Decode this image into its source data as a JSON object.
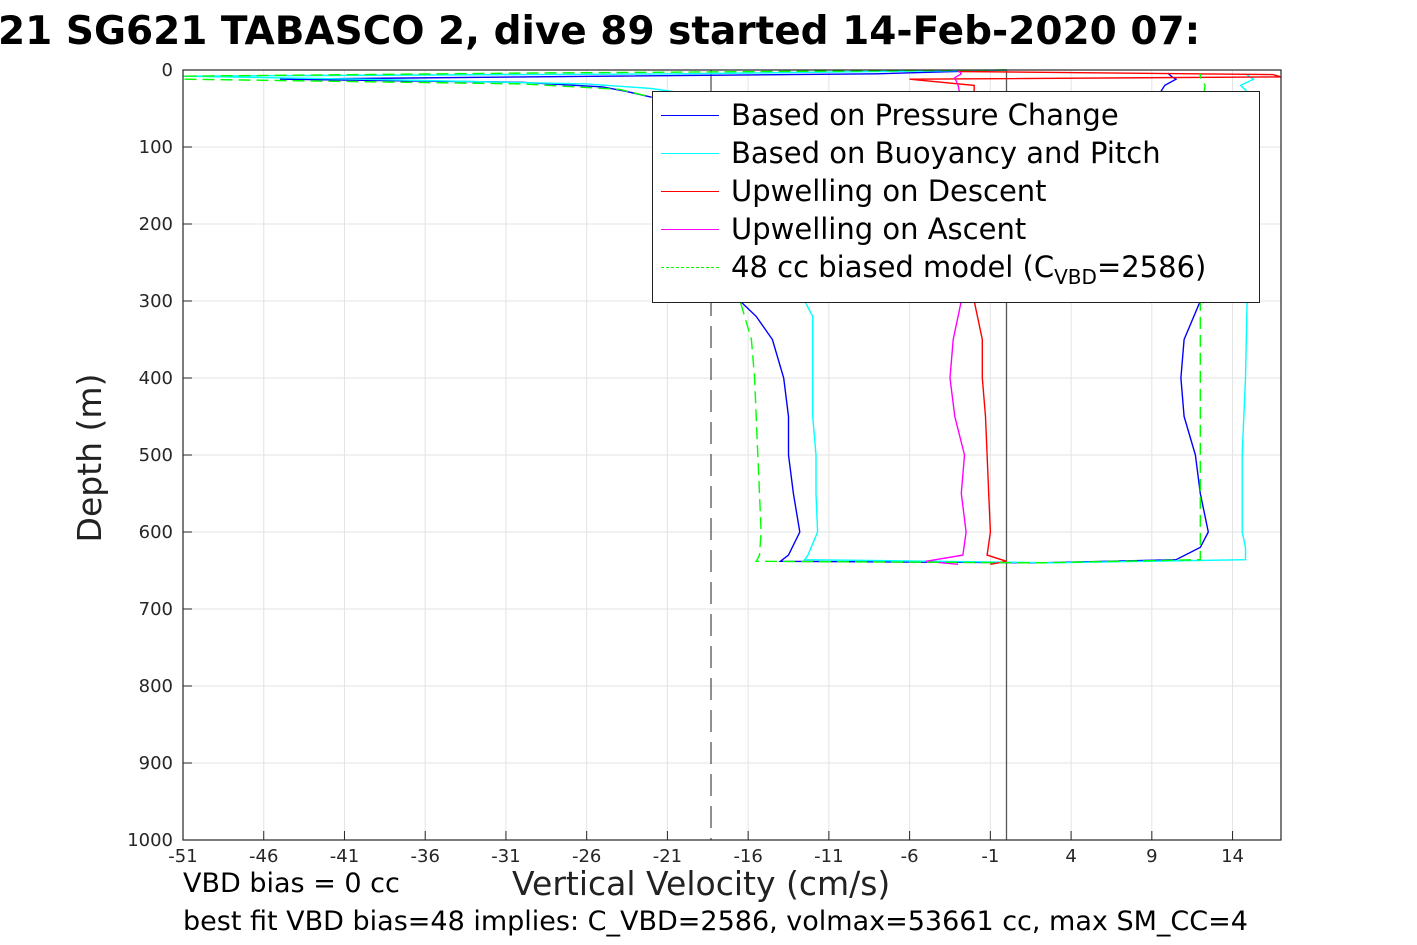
{
  "title": "21 SG621 TABASCO 2, dive 89 started 14-Feb-2020 07:",
  "notes": {
    "line1": "VBD bias = 0 cc",
    "line2": "best fit VBD bias=48 implies: C_VBD=2586, volmax=53661 cc, max SM_CC=4"
  },
  "chart_data": {
    "type": "line",
    "title": "21 SG621 TABASCO 2, dive 89 started 14-Feb-2020 07:",
    "xlabel": "Vertical Velocity (cm/s)",
    "ylabel": "Depth (m)",
    "xlim": [
      -51,
      17
    ],
    "ylim": [
      1000,
      0
    ],
    "y_reversed": true,
    "grid": true,
    "legend_position": "top-right",
    "xticks": [
      "-51",
      "-46",
      "-41",
      "-36",
      "-31",
      "-26",
      "-21",
      "-16",
      "-11",
      "-6",
      "-1",
      "4",
      "9",
      "14"
    ],
    "yticks": [
      "0",
      "100",
      "200",
      "300",
      "400",
      "500",
      "600",
      "700",
      "800",
      "900",
      "1000"
    ],
    "reference_lines": [
      {
        "x": -18.3,
        "style": "dashed",
        "color": "#555555"
      },
      {
        "x": 0,
        "style": "solid",
        "color": "#555555"
      }
    ],
    "series": [
      {
        "name": "Based on Pressure Change",
        "color": "#0000ff",
        "dash": false,
        "depth": [
          0,
          5,
          9,
          12,
          16,
          22,
          28,
          40,
          80,
          150,
          250,
          300,
          320,
          350,
          400,
          450,
          500,
          550,
          600,
          630,
          638,
          640,
          636,
          620,
          600,
          550,
          500,
          450,
          400,
          350,
          300,
          200,
          100,
          50,
          30,
          20,
          12,
          8,
          4
        ],
        "velocity": [
          0,
          -8,
          -30,
          -45,
          -30,
          -25,
          -23.5,
          -21,
          -19,
          -18,
          -17,
          -16.5,
          -15.5,
          -14.5,
          -13.8,
          -13.5,
          -13.5,
          -13.2,
          -12.8,
          -13.5,
          -14,
          2,
          10.5,
          12,
          12.5,
          12,
          11.7,
          11,
          10.8,
          11,
          12,
          11.5,
          10.8,
          10,
          9.5,
          9.8,
          10.5,
          10.2,
          10
        ]
      },
      {
        "name": "Based on Buoyancy and Pitch",
        "color": "#00ffff",
        "dash": false,
        "depth": [
          0,
          5,
          8,
          12,
          18,
          24,
          30,
          40,
          80,
          150,
          250,
          300,
          320,
          350,
          400,
          450,
          500,
          550,
          600,
          630,
          636,
          640,
          636,
          620,
          600,
          500,
          400,
          300,
          200,
          100,
          50,
          30,
          20,
          12,
          5
        ],
        "velocity": [
          0,
          -20,
          -51,
          -40,
          -26,
          -22,
          -20,
          -18,
          -16,
          -14.5,
          -13,
          -12.5,
          -12,
          -12,
          -12,
          -12,
          -11.8,
          -11.8,
          -11.7,
          -12.3,
          -12.5,
          3,
          14.8,
          14.8,
          14.6,
          14.6,
          14.8,
          14.9,
          14.8,
          14.7,
          14.8,
          15,
          14.5,
          15.3,
          14.8
        ]
      },
      {
        "name": "Upwelling on Descent",
        "color": "#ff0000",
        "dash": false,
        "depth": [
          2,
          6,
          9,
          12,
          20,
          40,
          80,
          150,
          250,
          300,
          350,
          400,
          450,
          500,
          550,
          600,
          630,
          638,
          642
        ],
        "velocity": [
          -3,
          16.5,
          17,
          -6,
          -2,
          -2,
          -1.8,
          -1.7,
          -1.6,
          -2,
          -1.5,
          -1.5,
          -1.3,
          -1.2,
          -1.1,
          -1,
          -1.2,
          0,
          -1
        ]
      },
      {
        "name": "Upwelling on Ascent",
        "color": "#ff00ff",
        "dash": false,
        "depth": [
          0,
          5,
          10,
          20,
          40,
          80,
          150,
          250,
          300,
          350,
          400,
          450,
          500,
          550,
          600,
          630,
          638,
          642
        ],
        "velocity": [
          -3,
          -2.8,
          -3.2,
          -3,
          -2.8,
          -3,
          -3,
          -2.9,
          -2.8,
          -3.3,
          -3.5,
          -3.2,
          -2.6,
          -2.8,
          -2.5,
          -2.7,
          -5,
          -3
        ]
      },
      {
        "name": "48 cc biased model (C_VBD=2586)",
        "label_main": "48 cc biased model (C",
        "label_sub": "VBD",
        "label_end": "=2586)",
        "color": "#00ff00",
        "dash": true,
        "depth": [
          0,
          4,
          8,
          12,
          18,
          25,
          35,
          60,
          120,
          200,
          300,
          350,
          400,
          450,
          500,
          550,
          600,
          630,
          638,
          640,
          636,
          600,
          500,
          400,
          300,
          200,
          100,
          50,
          20,
          10,
          5
        ],
        "velocity": [
          0,
          -30,
          -51,
          -51,
          -30,
          -24,
          -22,
          -20,
          -18.5,
          -17.5,
          -16.5,
          -15.8,
          -15.6,
          -15.5,
          -15.4,
          -15.3,
          -15.2,
          -15.3,
          -15.5,
          2,
          12,
          12,
          12,
          12,
          12,
          12,
          12.2,
          12.1,
          12.3,
          12,
          12
        ]
      }
    ]
  }
}
